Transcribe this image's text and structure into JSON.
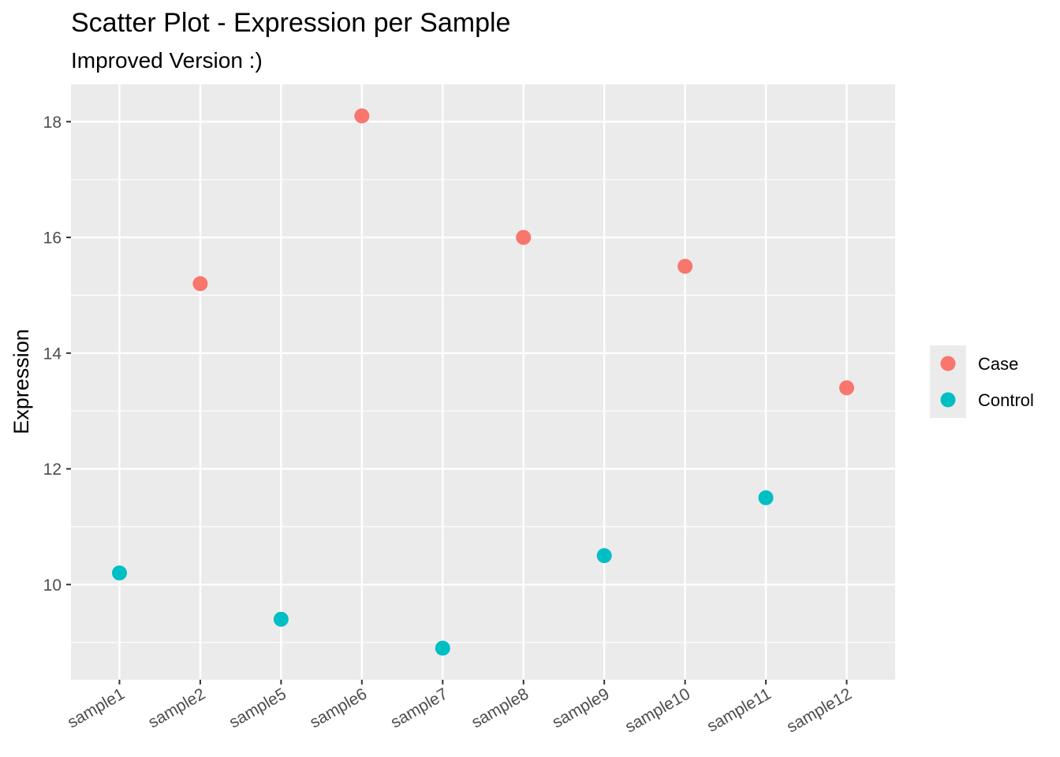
{
  "chart_data": {
    "type": "scatter",
    "title": "Scatter Plot - Expression per Sample",
    "subtitle": "Improved Version :)",
    "xlabel": "",
    "ylabel": "Expression",
    "categories": [
      "sample1",
      "sample2",
      "sample5",
      "sample6",
      "sample7",
      "sample8",
      "sample9",
      "sample10",
      "sample11",
      "sample12"
    ],
    "series": [
      {
        "name": "Case",
        "color": "#F8766D",
        "points": [
          {
            "x": "sample2",
            "y": 15.2
          },
          {
            "x": "sample6",
            "y": 18.1
          },
          {
            "x": "sample8",
            "y": 16.0
          },
          {
            "x": "sample10",
            "y": 15.5
          },
          {
            "x": "sample12",
            "y": 13.4
          }
        ]
      },
      {
        "name": "Control",
        "color": "#00BFC4",
        "points": [
          {
            "x": "sample1",
            "y": 10.2
          },
          {
            "x": "sample5",
            "y": 9.4
          },
          {
            "x": "sample7",
            "y": 8.9
          },
          {
            "x": "sample9",
            "y": 10.5
          },
          {
            "x": "sample11",
            "y": 11.5
          }
        ]
      }
    ],
    "ylim": [
      8.355,
      18.645
    ],
    "y_major_ticks": [
      10,
      12,
      14,
      16,
      18
    ],
    "y_minor_ticks": [
      9,
      11,
      13,
      15,
      17
    ],
    "grid": true,
    "panel_background": "#EBEBEB",
    "grid_color": "#FFFFFF",
    "legend_position": "right"
  }
}
